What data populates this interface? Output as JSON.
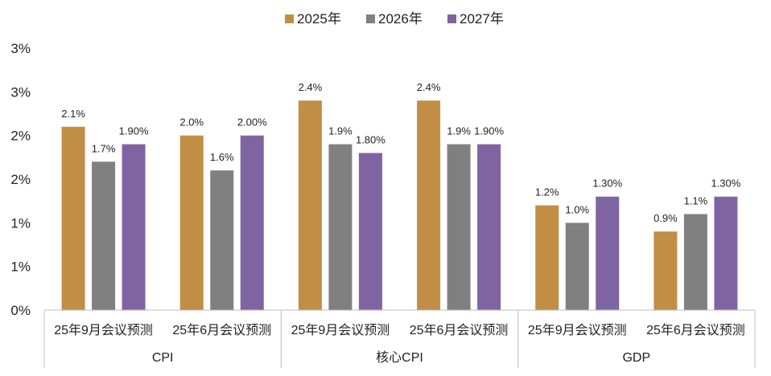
{
  "chart_data": {
    "type": "bar",
    "title": "",
    "xlabel": "",
    "ylabel": "",
    "ylim": [
      0,
      3
    ],
    "yticks": [
      0,
      0.5,
      1.0,
      1.5,
      2.0,
      2.5,
      3.0
    ],
    "ytick_labels": [
      "0%",
      "1%",
      "1%",
      "2%",
      "2%",
      "3%",
      "3%"
    ],
    "legend_position": "top-center",
    "grid": false,
    "groups": [
      {
        "label": "CPI",
        "categories": [
          "25年9月会议预测",
          "25年6月会议预测"
        ]
      },
      {
        "label": "核心CPI",
        "categories": [
          "25年9月会议预测",
          "25年6月会议预测"
        ]
      },
      {
        "label": "GDP",
        "categories": [
          "25年9月会议预测",
          "25年6月会议预测"
        ]
      }
    ],
    "series": [
      {
        "name": "2025年",
        "color": "#C08E45",
        "values": [
          2.1,
          2.0,
          2.4,
          2.4,
          1.2,
          0.9
        ],
        "labels": [
          "2.1%",
          "2.0%",
          "2.4%",
          "2.4%",
          "1.2%",
          "0.9%"
        ]
      },
      {
        "name": "2026年",
        "color": "#808080",
        "values": [
          1.7,
          1.6,
          1.9,
          1.9,
          1.0,
          1.1
        ],
        "labels": [
          "1.7%",
          "1.6%",
          "1.9%",
          "1.9%",
          "1.0%",
          "1.1%"
        ]
      },
      {
        "name": "2027年",
        "color": "#8064A2",
        "values": [
          1.9,
          2.0,
          1.8,
          1.9,
          1.3,
          1.3
        ],
        "labels": [
          "1.90%",
          "2.00%",
          "1.80%",
          "1.90%",
          "1.30%",
          "1.30%"
        ]
      }
    ]
  }
}
